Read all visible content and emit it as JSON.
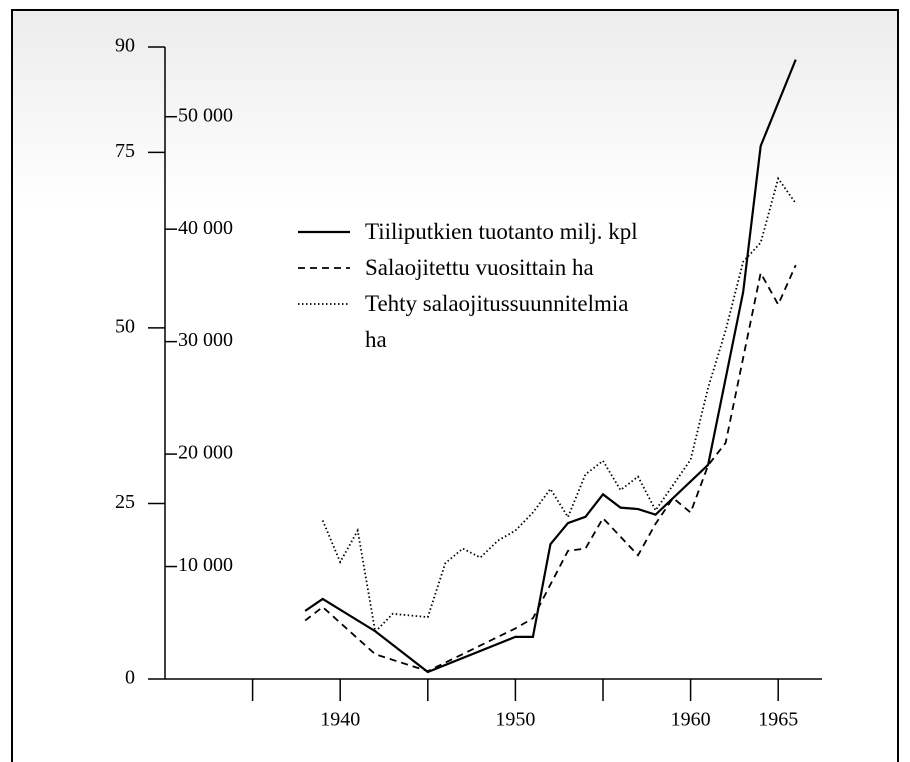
{
  "chart_data": {
    "type": "line",
    "xlim": [
      1930,
      1967.5
    ],
    "xticks": [
      1940,
      1950,
      1960,
      1965
    ],
    "minor_xticks": [
      1935,
      1945,
      1955
    ],
    "ylim": [
      0,
      90
    ],
    "yticks": [
      0,
      25,
      50,
      75,
      90
    ],
    "y2lim": [
      0,
      56200
    ],
    "y2ticks": [
      {
        "value": 10000,
        "label": "10 000"
      },
      {
        "value": 20000,
        "label": "20 000"
      },
      {
        "value": 30000,
        "label": "30 000"
      },
      {
        "value": 40000,
        "label": "40 000"
      },
      {
        "value": 50000,
        "label": "50 000"
      }
    ],
    "series": [
      {
        "name": "Tiiliputkien tuotanto milj. kpl",
        "color": "#000000",
        "dash": "solid",
        "axis": "y",
        "x": [
          1938,
          1939,
          1942,
          1945,
          1950,
          1951,
          1952,
          1953,
          1954,
          1955,
          1956,
          1957,
          1958,
          1961,
          1963,
          1964,
          1966
        ],
        "values": [
          9.7,
          11.4,
          6.8,
          1.0,
          6.0,
          6.0,
          19.2,
          22.2,
          23.1,
          26.3,
          24.4,
          24.2,
          23.4,
          30.5,
          55.1,
          75.9,
          88.2
        ]
      },
      {
        "name": "Salaojitettu vuosittain ha",
        "color": "#000000",
        "dash": "dashed",
        "axis": "y2",
        "x": [
          1938,
          1939,
          1942,
          1945,
          1950,
          1951,
          1953,
          1954,
          1955,
          1957,
          1958,
          1959,
          1960,
          1961,
          1962,
          1964,
          1965,
          1966
        ],
        "values": [
          5200,
          6400,
          2200,
          700,
          4500,
          5400,
          11400,
          11600,
          14300,
          11000,
          13800,
          16100,
          14800,
          19000,
          21000,
          36100,
          33300,
          36800
        ]
      },
      {
        "name": "Tehty salaojitussuunnitelmia ha",
        "color": "#000000",
        "dash": "dotted",
        "axis": "y2",
        "x": [
          1939,
          1940,
          1941,
          1942,
          1943,
          1945,
          1946,
          1947,
          1948,
          1949,
          1950,
          1951,
          1952,
          1953,
          1954,
          1955,
          1956,
          1957,
          1958,
          1960,
          1961,
          1962,
          1963,
          1964,
          1965,
          1966
        ],
        "values": [
          14100,
          10400,
          13200,
          4200,
          5800,
          5500,
          10300,
          11600,
          10800,
          12300,
          13200,
          14800,
          16900,
          14400,
          18200,
          19400,
          16800,
          18000,
          15000,
          19500,
          25900,
          31000,
          37100,
          38800,
          44500,
          42300
        ]
      }
    ]
  }
}
